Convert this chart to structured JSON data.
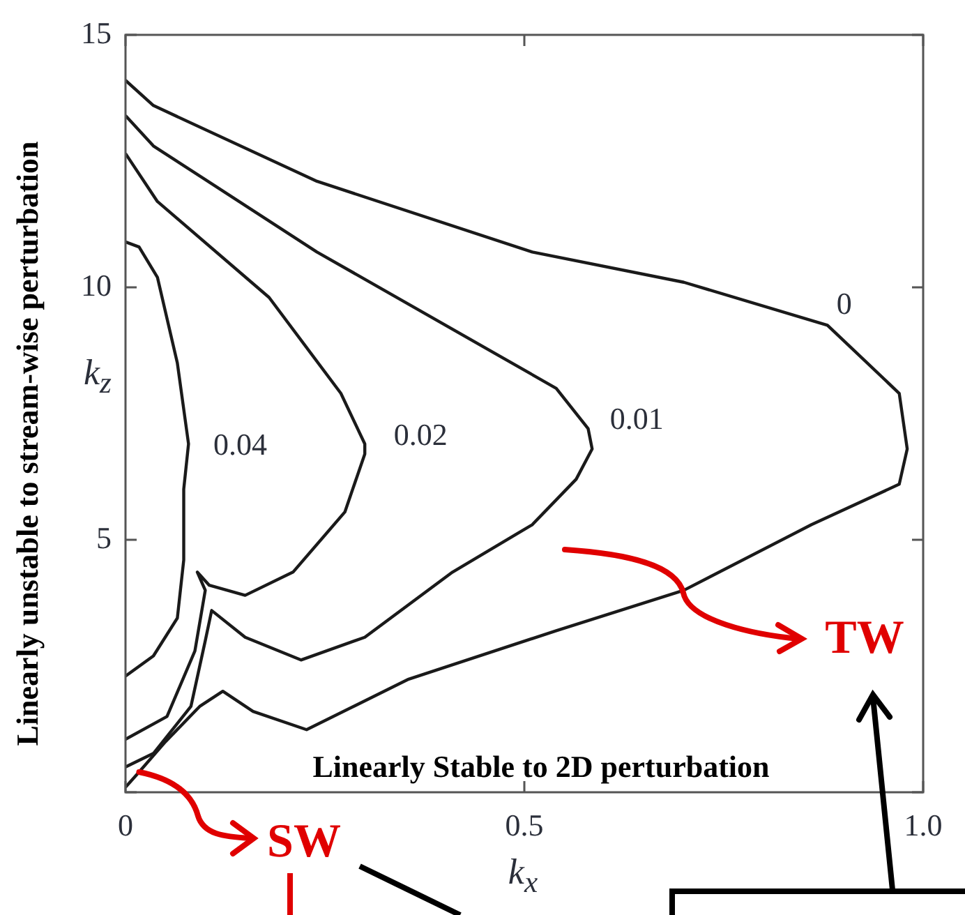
{
  "chart_data": {
    "type": "line",
    "xlabel": "k$_{x}$",
    "ylabel": "k$_{z}$",
    "xlim": [
      0,
      1
    ],
    "ylim": [
      0,
      15
    ],
    "xticks": [
      0,
      0.5,
      {
        "value": 1,
        "label": "1.0"
      }
    ],
    "yticks": [
      {
        "value": 0,
        "label": null
      },
      5,
      10,
      15
    ],
    "grid": false,
    "legend": false,
    "marker": "none",
    "line_style": "solid",
    "series": [
      {
        "name": "0",
        "color": "#1a1a1a",
        "x": [
          0,
          0.035,
          0.24,
          0.51,
          0.7,
          0.88,
          0.97,
          0.98,
          0.97,
          0.86,
          0.7,
          0.54,
          0.355,
          0.227,
          0.16,
          0.122,
          0.093,
          0.05,
          0.017,
          0
        ],
        "values": [
          14.1,
          13.6,
          12.1,
          10.7,
          10.1,
          9.25,
          7.9,
          6.8,
          6.1,
          5.3,
          4.0,
          3.2,
          2.24,
          1.24,
          1.6,
          2.0,
          1.7,
          1.0,
          0.4,
          0.1
        ]
      },
      {
        "name": "0.01",
        "color": "#1a1a1a",
        "x": [
          0,
          0.035,
          0.24,
          0.54,
          0.58,
          0.585,
          0.565,
          0.51,
          0.41,
          0.3,
          0.22,
          0.15,
          0.108,
          0.1,
          0.082,
          0.035,
          0
        ],
        "values": [
          13.4,
          12.8,
          10.7,
          8.0,
          7.2,
          6.8,
          6.2,
          5.3,
          4.36,
          3.07,
          2.62,
          3.07,
          3.6,
          3.0,
          1.7,
          0.77,
          0.5
        ]
      },
      {
        "name": "0.02",
        "color": "#1a1a1a",
        "x": [
          0,
          0.04,
          0.18,
          0.27,
          0.3,
          0.3,
          0.275,
          0.21,
          0.15,
          0.105,
          0.09,
          0.1,
          0.087,
          0.052,
          0
        ],
        "values": [
          12.65,
          11.7,
          9.8,
          7.9,
          6.9,
          6.7,
          5.55,
          4.36,
          3.9,
          4.1,
          4.36,
          4.0,
          2.8,
          1.5,
          1.05
        ]
      },
      {
        "name": "0.04",
        "color": "#1a1a1a",
        "x": [
          0,
          0.017,
          0.04,
          0.065,
          0.079,
          0.073,
          0.073,
          0.065,
          0.035,
          0
        ],
        "values": [
          10.9,
          10.8,
          10.2,
          8.5,
          6.9,
          6.0,
          4.6,
          3.45,
          2.7,
          2.3
        ]
      }
    ],
    "annotations": [
      "Linearly unstable to stream-wise perturbation",
      "Linearly Stable to 2D perturbation",
      {
        "text": "SW",
        "x": 0.017,
        "y": 0.4
      },
      "TW"
    ]
  }
}
